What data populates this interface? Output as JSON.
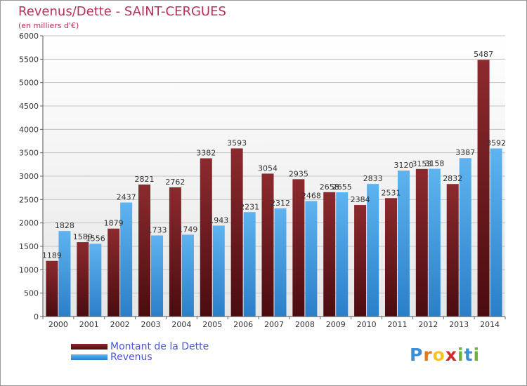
{
  "chart_data": {
    "type": "bar",
    "title": "Revenus/Dette - SAINT-CERGUES",
    "subtitle": "(en milliers d'€)",
    "categories": [
      "2000",
      "2001",
      "2002",
      "2003",
      "2004",
      "2005",
      "2006",
      "2007",
      "2008",
      "2009",
      "2010",
      "2011",
      "2012",
      "2013",
      "2014"
    ],
    "series": [
      {
        "name": "Montant de la Dette",
        "color": "#7a1e22",
        "values": [
          1189,
          1589,
          1879,
          2821,
          2762,
          3382,
          3593,
          3054,
          2935,
          2658,
          2384,
          2531,
          3153,
          2832,
          5487
        ]
      },
      {
        "name": "Revenus",
        "color": "#3d9be6",
        "values": [
          1828,
          1556,
          2437,
          1733,
          1749,
          1943,
          2231,
          2312,
          2468,
          2655,
          2833,
          3120,
          3158,
          3387,
          3592
        ]
      }
    ],
    "ylim": [
      0,
      6000
    ],
    "yticks": [
      0,
      500,
      1000,
      1500,
      2000,
      2500,
      3000,
      3500,
      4000,
      4500,
      5000,
      5500,
      6000
    ],
    "grid": true,
    "legend_position": "bottom-left"
  },
  "logo": {
    "letters": [
      {
        "char": "P",
        "color": "#3a8fd8"
      },
      {
        "char": "r",
        "color": "#e07a1f"
      },
      {
        "char": "o",
        "color": "#f3c623"
      },
      {
        "char": "x",
        "color": "#d42a2a"
      },
      {
        "char": "i",
        "color": "#6fb23a"
      },
      {
        "char": "t",
        "color": "#3a8fd8"
      },
      {
        "char": "i",
        "color": "#6fb23a"
      }
    ]
  }
}
